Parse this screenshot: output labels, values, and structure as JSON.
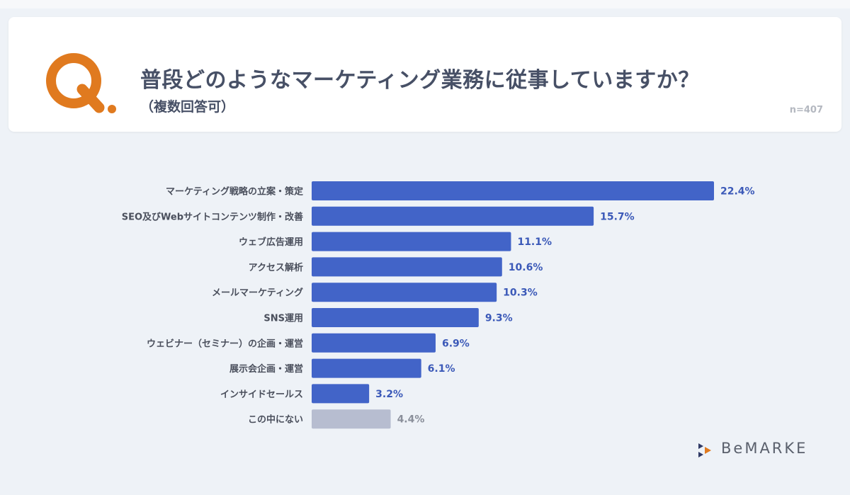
{
  "question": {
    "mark": "Q.",
    "title": "普段どのようなマーケティング業務に従事していますか？",
    "subtitle": "（複数回答可）",
    "sample": "n=407"
  },
  "colors": {
    "bar": "#4264c8",
    "bar_other": "#b7bdd0",
    "value": "#3b59b8",
    "value_other": "#8a8f9a",
    "accent": "#e07a1f"
  },
  "chart_data": {
    "type": "bar",
    "orientation": "horizontal",
    "categories": [
      "マーケティング戦略の立案・策定",
      "SEO及びWebサイトコンテンツ制作・改善",
      "ウェブ広告運用",
      "アクセス解析",
      "メールマーケティング",
      "SNS運用",
      "ウェビナー（セミナー）の企画・運営",
      "展示会企画・運営",
      "インサイドセールス",
      "この中にない"
    ],
    "values": [
      22.4,
      15.7,
      11.1,
      10.6,
      10.3,
      9.3,
      6.9,
      6.1,
      3.2,
      4.4
    ],
    "value_labels": [
      "22.4%",
      "15.7%",
      "11.1%",
      "10.6%",
      "10.3%",
      "9.3%",
      "6.9%",
      "6.1%",
      "3.2%",
      "4.4%"
    ],
    "unit": "%",
    "xlim": [
      0,
      22.4
    ],
    "grid": false,
    "legend": "none"
  },
  "brand": {
    "name": "BeMARKE",
    "icon": "brand-arrows-icon"
  }
}
